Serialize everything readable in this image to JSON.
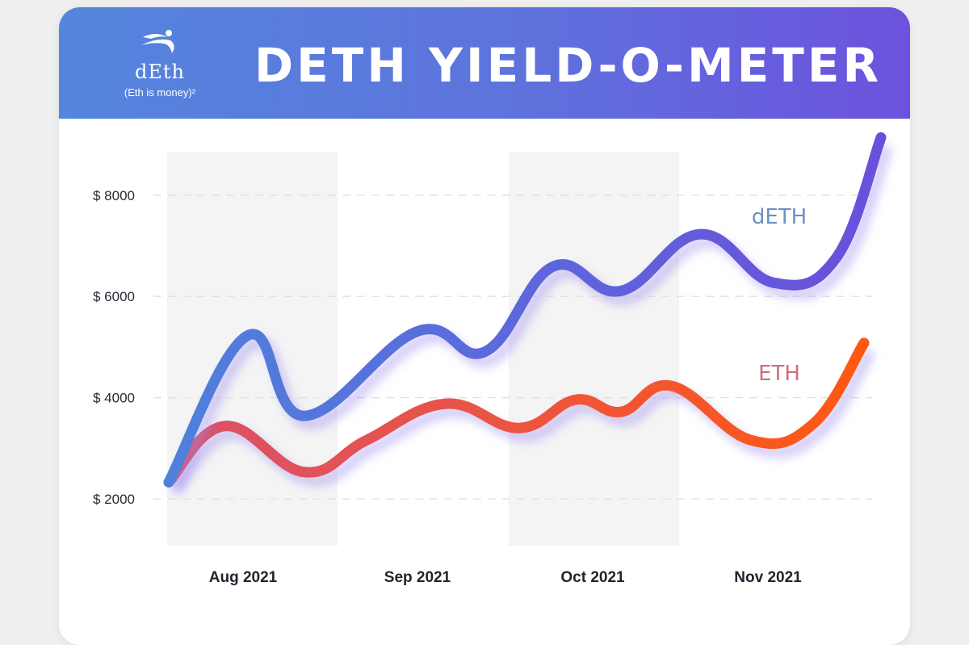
{
  "header": {
    "title": "DETH YIELD-O-METER",
    "logo_name": "dEth",
    "logo_tagline": "(Eth is money)²"
  },
  "colors": {
    "header_start": "#5486dd",
    "header_end": "#6c52dd",
    "deth_start": "#4f80dc",
    "deth_end": "#6a4fdb",
    "eth_start": "#d9506c",
    "eth_end": "#ff5812",
    "deth_label": "#6f8fc4",
    "eth_label": "#cc6d7a",
    "band": "#f4f4f4"
  },
  "chart_data": {
    "type": "line",
    "title": "DETH YIELD-O-METER",
    "xlabel": "",
    "ylabel": "",
    "y_ticks": [
      {
        "value": 8000,
        "label": "$ 8000"
      },
      {
        "value": 6000,
        "label": "$ 6000"
      },
      {
        "value": 4000,
        "label": "$ 4000"
      },
      {
        "value": 2000,
        "label": "$ 2000"
      }
    ],
    "x_ticks": [
      {
        "date": "2021-08-15",
        "label": "Aug 2021"
      },
      {
        "date": "2021-09-15",
        "label": "Sep 2021"
      },
      {
        "date": "2021-10-15",
        "label": "Oct 2021"
      },
      {
        "date": "2021-11-15",
        "label": "Nov 2021"
      }
    ],
    "grid": "horizontal dashed",
    "shaded_months": [
      "Aug 2021",
      "Oct 2021"
    ],
    "series": [
      {
        "name": "dETH",
        "points": [
          [
            "2021-07-18",
            2330
          ],
          [
            "2021-08-01",
            5230
          ],
          [
            "2021-08-11",
            3640
          ],
          [
            "2021-08-31",
            5310
          ],
          [
            "2021-09-12",
            4910
          ],
          [
            "2021-09-24",
            6590
          ],
          [
            "2021-10-06",
            6110
          ],
          [
            "2021-10-20",
            7230
          ],
          [
            "2021-11-02",
            6270
          ],
          [
            "2021-11-13",
            6750
          ],
          [
            "2021-11-21",
            9140
          ]
        ]
      },
      {
        "name": "ETH",
        "points": [
          [
            "2021-07-18",
            2330
          ],
          [
            "2021-07-28",
            3440
          ],
          [
            "2021-08-11",
            2530
          ],
          [
            "2021-08-22",
            3160
          ],
          [
            "2021-09-05",
            3880
          ],
          [
            "2021-09-18",
            3400
          ],
          [
            "2021-09-28",
            3960
          ],
          [
            "2021-10-06",
            3720
          ],
          [
            "2021-10-15",
            4230
          ],
          [
            "2021-10-29",
            3160
          ],
          [
            "2021-11-09",
            3480
          ],
          [
            "2021-11-18",
            5080
          ]
        ]
      }
    ]
  }
}
